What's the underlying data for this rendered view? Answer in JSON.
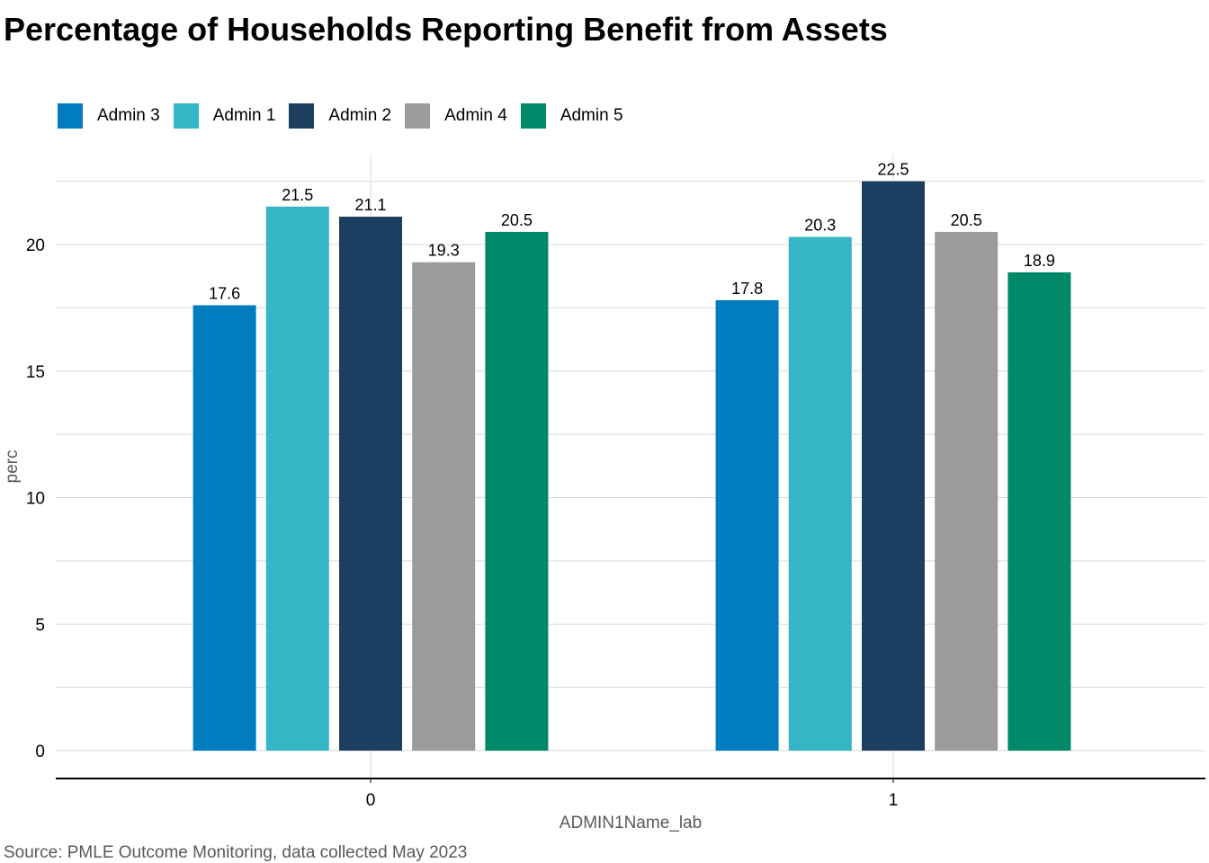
{
  "chart_data": {
    "type": "bar",
    "title": "Percentage of Households Reporting Benefit from Assets",
    "xlabel": "ADMIN1Name_lab",
    "ylabel": "perc",
    "categories": [
      "0",
      "1"
    ],
    "series": [
      {
        "name": "Admin 3",
        "color": "#007CBF",
        "values": [
          17.6,
          17.8
        ]
      },
      {
        "name": "Admin 1",
        "color": "#35B5C5",
        "values": [
          21.5,
          20.3
        ]
      },
      {
        "name": "Admin 2",
        "color": "#1C3F61",
        "values": [
          21.1,
          22.5
        ]
      },
      {
        "name": "Admin 4",
        "color": "#9B9B9B",
        "values": [
          19.3,
          20.5
        ]
      },
      {
        "name": "Admin 5",
        "color": "#008868",
        "values": [
          20.5,
          18.9
        ]
      }
    ],
    "yticks": [
      0,
      5,
      10,
      15,
      20
    ],
    "ylim": [
      0,
      22.5
    ],
    "grid": true,
    "legend_position": "top-left",
    "caption": "Source: PMLE Outcome Monitoring, data collected May 2023"
  }
}
